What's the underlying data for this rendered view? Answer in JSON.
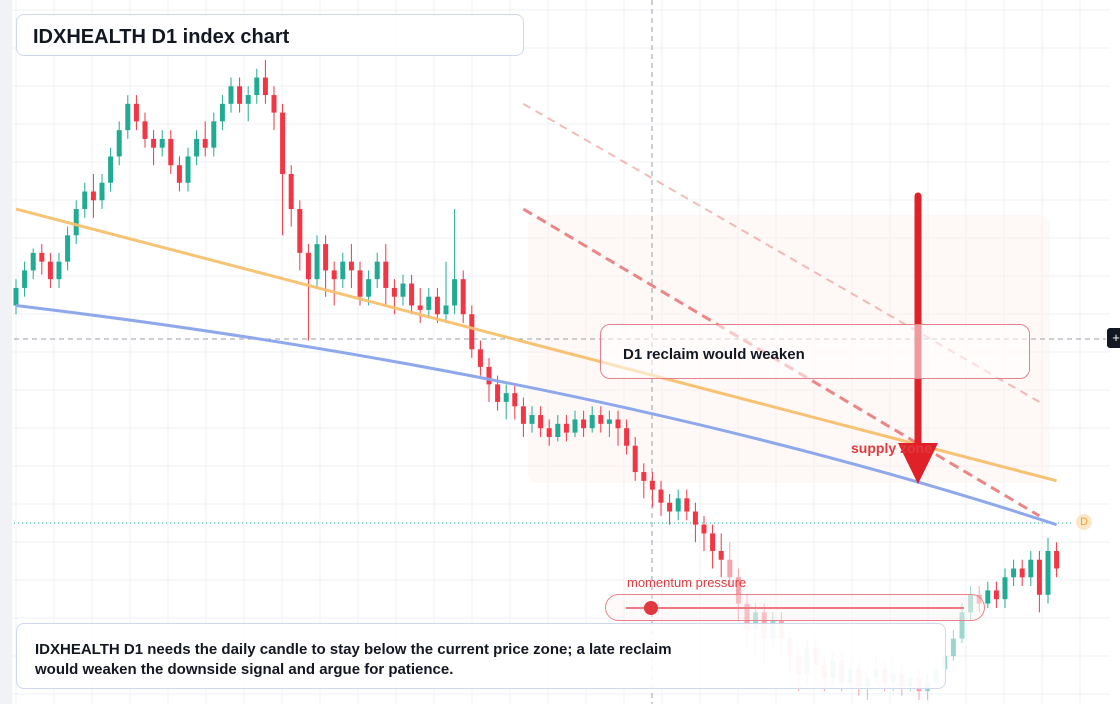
{
  "title": "IDXHEALTH D1 index chart",
  "note": {
    "line1": "IDXHEALTH D1 needs the daily candle to stay below the current price zone; a late reclaim",
    "line2": "would weaken the downside signal and argue for patience."
  },
  "callout": "D1 reclaim would weaken",
  "supply_label": "supply zone",
  "momentum_label": "momentum pressure",
  "badge_label": "D",
  "plus_label": "+",
  "colors": {
    "up": "#22ab94",
    "down": "#f23645",
    "orange_line": "#f7c06d",
    "blue_line": "#8fa8ec",
    "arrow": "#e02128",
    "dashed": "#e87a7a"
  },
  "chart_data": {
    "type": "candlestick",
    "timeframe": "D1",
    "symbol": "IDXHEALTH",
    "candles": [
      [
        1,
        0.5,
        0.54,
        0.48,
        0.56
      ],
      [
        2,
        0.54,
        0.58,
        0.52,
        0.6
      ],
      [
        3,
        0.58,
        0.62,
        0.56,
        0.63
      ],
      [
        4,
        0.62,
        0.6,
        0.57,
        0.64
      ],
      [
        5,
        0.6,
        0.56,
        0.54,
        0.62
      ],
      [
        6,
        0.56,
        0.6,
        0.54,
        0.62
      ],
      [
        7,
        0.6,
        0.66,
        0.58,
        0.68
      ],
      [
        8,
        0.66,
        0.72,
        0.64,
        0.74
      ],
      [
        9,
        0.72,
        0.76,
        0.7,
        0.78
      ],
      [
        10,
        0.76,
        0.74,
        0.7,
        0.8
      ],
      [
        11,
        0.74,
        0.78,
        0.72,
        0.8
      ],
      [
        12,
        0.78,
        0.84,
        0.76,
        0.86
      ],
      [
        13,
        0.84,
        0.9,
        0.82,
        0.92
      ],
      [
        14,
        0.9,
        0.96,
        0.88,
        0.98
      ],
      [
        15,
        0.96,
        0.92,
        0.9,
        0.98
      ],
      [
        16,
        0.92,
        0.88,
        0.86,
        0.94
      ],
      [
        17,
        0.88,
        0.86,
        0.82,
        0.9
      ],
      [
        18,
        0.86,
        0.88,
        0.84,
        0.9
      ],
      [
        19,
        0.88,
        0.82,
        0.8,
        0.9
      ],
      [
        20,
        0.82,
        0.78,
        0.76,
        0.84
      ],
      [
        21,
        0.78,
        0.84,
        0.76,
        0.86
      ],
      [
        22,
        0.84,
        0.88,
        0.82,
        0.9
      ],
      [
        23,
        0.88,
        0.86,
        0.84,
        0.92
      ],
      [
        24,
        0.86,
        0.92,
        0.84,
        0.94
      ],
      [
        25,
        0.92,
        0.96,
        0.9,
        0.98
      ],
      [
        26,
        0.96,
        1.0,
        0.94,
        1.02
      ],
      [
        27,
        1.0,
        0.96,
        0.94,
        1.02
      ],
      [
        28,
        0.96,
        0.98,
        0.92,
        1.0
      ],
      [
        29,
        0.98,
        1.02,
        0.96,
        1.04
      ],
      [
        30,
        1.02,
        0.98,
        0.96,
        1.06
      ],
      [
        31,
        0.98,
        0.94,
        0.9,
        1.0
      ],
      [
        32,
        0.94,
        0.8,
        0.66,
        0.96
      ],
      [
        33,
        0.8,
        0.72,
        0.68,
        0.82
      ],
      [
        34,
        0.72,
        0.62,
        0.58,
        0.74
      ],
      [
        35,
        0.62,
        0.56,
        0.42,
        0.64
      ],
      [
        36,
        0.56,
        0.64,
        0.54,
        0.66
      ],
      [
        37,
        0.64,
        0.58,
        0.52,
        0.66
      ],
      [
        38,
        0.58,
        0.56,
        0.5,
        0.6
      ],
      [
        39,
        0.56,
        0.6,
        0.54,
        0.62
      ],
      [
        40,
        0.6,
        0.58,
        0.54,
        0.64
      ],
      [
        41,
        0.58,
        0.52,
        0.5,
        0.6
      ],
      [
        42,
        0.52,
        0.56,
        0.5,
        0.58
      ],
      [
        43,
        0.56,
        0.6,
        0.54,
        0.62
      ],
      [
        44,
        0.6,
        0.54,
        0.5,
        0.64
      ],
      [
        45,
        0.54,
        0.52,
        0.48,
        0.56
      ],
      [
        46,
        0.52,
        0.55,
        0.5,
        0.57
      ],
      [
        47,
        0.55,
        0.5,
        0.48,
        0.57
      ],
      [
        48,
        0.5,
        0.49,
        0.46,
        0.54
      ],
      [
        49,
        0.49,
        0.52,
        0.47,
        0.54
      ],
      [
        50,
        0.52,
        0.48,
        0.46,
        0.54
      ],
      [
        51,
        0.48,
        0.5,
        0.46,
        0.6
      ],
      [
        52,
        0.5,
        0.56,
        0.48,
        0.72
      ],
      [
        53,
        0.56,
        0.48,
        0.46,
        0.58
      ],
      [
        54,
        0.48,
        0.4,
        0.38,
        0.5
      ],
      [
        55,
        0.4,
        0.36,
        0.34,
        0.42
      ],
      [
        56,
        0.36,
        0.32,
        0.28,
        0.38
      ],
      [
        57,
        0.32,
        0.28,
        0.26,
        0.34
      ],
      [
        58,
        0.28,
        0.3,
        0.24,
        0.32
      ],
      [
        59,
        0.3,
        0.27,
        0.24,
        0.32
      ],
      [
        60,
        0.27,
        0.23,
        0.2,
        0.29
      ],
      [
        61,
        0.23,
        0.25,
        0.21,
        0.27
      ],
      [
        62,
        0.25,
        0.22,
        0.2,
        0.27
      ],
      [
        63,
        0.22,
        0.2,
        0.18,
        0.24
      ],
      [
        64,
        0.2,
        0.23,
        0.19,
        0.25
      ],
      [
        65,
        0.23,
        0.21,
        0.19,
        0.25
      ],
      [
        66,
        0.21,
        0.24,
        0.2,
        0.26
      ],
      [
        67,
        0.24,
        0.22,
        0.2,
        0.26
      ],
      [
        68,
        0.22,
        0.25,
        0.21,
        0.27
      ],
      [
        69,
        0.25,
        0.23,
        0.21,
        0.27
      ],
      [
        70,
        0.23,
        0.24,
        0.2,
        0.26
      ],
      [
        71,
        0.24,
        0.22,
        0.18,
        0.26
      ],
      [
        72,
        0.22,
        0.18,
        0.16,
        0.24
      ],
      [
        73,
        0.18,
        0.12,
        0.1,
        0.2
      ],
      [
        74,
        0.12,
        0.1,
        0.06,
        0.14
      ],
      [
        75,
        0.1,
        0.08,
        0.04,
        0.12
      ],
      [
        76,
        0.08,
        0.05,
        0.02,
        0.1
      ],
      [
        77,
        0.05,
        0.03,
        0.0,
        0.07
      ],
      [
        78,
        0.03,
        0.06,
        0.01,
        0.08
      ],
      [
        79,
        0.06,
        0.03,
        0.01,
        0.08
      ],
      [
        80,
        0.03,
        0.0,
        -0.04,
        0.05
      ],
      [
        81,
        0.0,
        -0.02,
        -0.06,
        0.02
      ],
      [
        82,
        -0.02,
        -0.06,
        -0.1,
        0.0
      ],
      [
        83,
        -0.06,
        -0.08,
        -0.12,
        -0.02
      ],
      [
        84,
        -0.08,
        -0.12,
        -0.14,
        -0.04
      ],
      [
        85,
        -0.12,
        -0.18,
        -0.22,
        -0.1
      ],
      [
        86,
        -0.18,
        -0.24,
        -0.28,
        -0.16
      ],
      [
        87,
        -0.24,
        -0.2,
        -0.3,
        -0.18
      ],
      [
        88,
        -0.2,
        -0.26,
        -0.32,
        -0.18
      ],
      [
        89,
        -0.26,
        -0.22,
        -0.28,
        -0.2
      ],
      [
        90,
        -0.22,
        -0.26,
        -0.3,
        -0.2
      ],
      [
        91,
        -0.26,
        -0.3,
        -0.34,
        -0.24
      ],
      [
        92,
        -0.3,
        -0.34,
        -0.38,
        -0.28
      ],
      [
        93,
        -0.34,
        -0.28,
        -0.36,
        -0.26
      ],
      [
        94,
        -0.28,
        -0.32,
        -0.36,
        -0.26
      ],
      [
        95,
        -0.32,
        -0.35,
        -0.38,
        -0.3
      ],
      [
        96,
        -0.35,
        -0.31,
        -0.37,
        -0.29
      ],
      [
        97,
        -0.31,
        -0.36,
        -0.38,
        -0.29
      ],
      [
        98,
        -0.36,
        -0.33,
        -0.37,
        -0.31
      ],
      [
        99,
        -0.33,
        -0.37,
        -0.39,
        -0.31
      ],
      [
        100,
        -0.37,
        -0.35,
        -0.4,
        -0.33
      ],
      [
        101,
        -0.35,
        -0.33,
        -0.36,
        -0.3
      ],
      [
        102,
        -0.33,
        -0.36,
        -0.38,
        -0.31
      ],
      [
        103,
        -0.36,
        -0.34,
        -0.38,
        -0.31
      ],
      [
        104,
        -0.34,
        -0.37,
        -0.39,
        -0.32
      ],
      [
        105,
        -0.37,
        -0.35,
        -0.38,
        -0.33
      ],
      [
        106,
        -0.35,
        -0.38,
        -0.4,
        -0.33
      ],
      [
        107,
        -0.38,
        -0.36,
        -0.4,
        -0.34
      ],
      [
        108,
        -0.36,
        -0.33,
        -0.37,
        -0.31
      ],
      [
        109,
        -0.33,
        -0.3,
        -0.34,
        -0.28
      ],
      [
        110,
        -0.3,
        -0.26,
        -0.31,
        -0.24
      ],
      [
        111,
        -0.26,
        -0.2,
        -0.27,
        -0.18
      ],
      [
        112,
        -0.2,
        -0.16,
        -0.22,
        -0.14
      ],
      [
        113,
        -0.16,
        -0.18,
        -0.2,
        -0.14
      ],
      [
        114,
        -0.18,
        -0.15,
        -0.19,
        -0.13
      ],
      [
        115,
        -0.15,
        -0.17,
        -0.19,
        -0.13
      ],
      [
        116,
        -0.17,
        -0.12,
        -0.19,
        -0.1
      ],
      [
        117,
        -0.12,
        -0.1,
        -0.14,
        -0.08
      ],
      [
        118,
        -0.1,
        -0.12,
        -0.14,
        -0.08
      ],
      [
        119,
        -0.12,
        -0.08,
        -0.14,
        -0.06
      ],
      [
        120,
        -0.08,
        -0.16,
        -0.2,
        -0.06
      ],
      [
        121,
        -0.16,
        -0.06,
        -0.18,
        -0.03
      ],
      [
        122,
        -0.06,
        -0.1,
        -0.12,
        -0.04
      ]
    ],
    "orange_line": [
      [
        1,
        0.72
      ],
      [
        122,
        0.1
      ]
    ],
    "blue_line": [
      [
        1,
        0.5
      ],
      [
        122,
        0.0
      ]
    ],
    "dashed_line_1": [
      [
        60,
        0.72
      ],
      [
        120,
        0.02
      ]
    ],
    "dashed_line_2": [
      [
        60,
        0.96
      ],
      [
        120,
        0.28
      ]
    ]
  }
}
